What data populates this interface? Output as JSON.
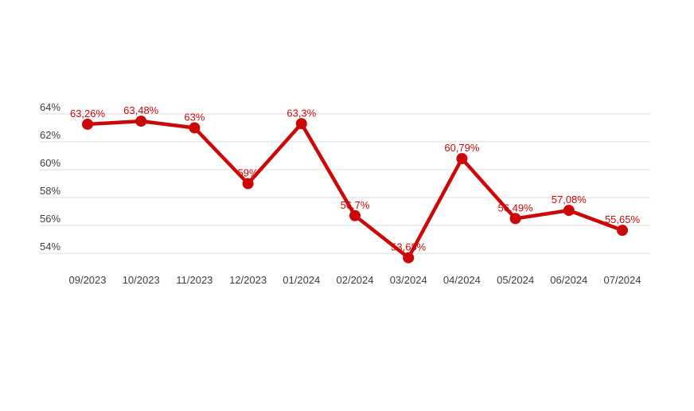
{
  "chart_data": {
    "type": "line",
    "title": "",
    "xlabel": "",
    "ylabel": "",
    "categories": [
      "09/2023",
      "10/2023",
      "11/2023",
      "12/2023",
      "01/2024",
      "02/2024",
      "03/2024",
      "04/2024",
      "05/2024",
      "06/2024",
      "07/2024"
    ],
    "values": [
      63.26,
      63.48,
      63.0,
      59.0,
      63.3,
      56.7,
      53.68,
      60.79,
      56.49,
      57.08,
      55.65
    ],
    "point_labels": [
      "63,26%",
      "63,48%",
      "63%",
      "59%",
      "63,3%",
      "56,7%",
      "53,68%",
      "60,79%",
      "56,49%",
      "57,08%",
      "55,65%"
    ],
    "y_ticks": [
      54,
      56,
      58,
      60,
      62,
      64
    ],
    "y_tick_labels": [
      "54%",
      "56%",
      "58%",
      "60%",
      "62%",
      "64%"
    ],
    "ylim": [
      53.0,
      65.0
    ],
    "grid": "horizontal-only",
    "legend": "none",
    "colors": {
      "line": "#cc0707",
      "point": "#cc0707",
      "point_label": "#cc0707",
      "grid": "#dcdcdc",
      "axis_text": "#404040",
      "background": "#ffffff"
    }
  }
}
